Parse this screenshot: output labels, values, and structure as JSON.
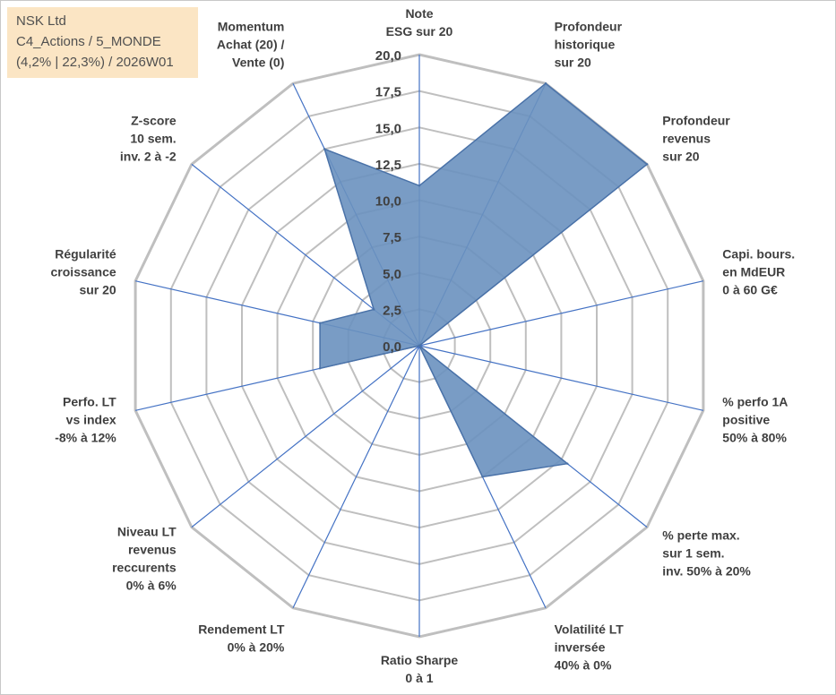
{
  "info": {
    "line1": "NSK Ltd",
    "line2": "C4_Actions / 5_MONDE",
    "line3": "(4,2% | 22,3%) / 2026W01"
  },
  "chart_data": {
    "type": "radar",
    "rmax": 20,
    "ticks": [
      "0,0",
      "2,5",
      "5,0",
      "7,5",
      "10,0",
      "12,5",
      "15,0",
      "17,5",
      "20,0"
    ],
    "axes": [
      [
        "Note",
        "ESG sur 20"
      ],
      [
        "Profondeur",
        "historique",
        "sur 20"
      ],
      [
        "Profondeur",
        "revenus",
        "sur 20"
      ],
      [
        "Capi. bours.",
        "en MdEUR",
        "0 à 60 G€"
      ],
      [
        "% perfo 1A",
        "positive",
        "50% à 80%"
      ],
      [
        "% perte max.",
        "sur 1 sem.",
        "inv. 50% à 20%"
      ],
      [
        "Volatilité LT",
        "inversée",
        "40% à 0%"
      ],
      [
        "Ratio Sharpe",
        "0 à 1"
      ],
      [
        "Rendement LT",
        "0% à 20%"
      ],
      [
        "Niveau LT",
        "revenus",
        "reccurents",
        "0% à 6%"
      ],
      [
        "Perfo. LT",
        "vs index",
        "-8% à 12%"
      ],
      [
        "Régularité",
        "croissance",
        "sur 20"
      ],
      [
        "Z-score",
        "10 sem.",
        "inv. 2 à -2"
      ],
      [
        "Momentum",
        "Achat (20) /",
        "Vente (0)"
      ]
    ],
    "values": [
      11,
      20,
      20,
      0,
      0,
      13,
      10,
      0,
      0,
      0,
      7,
      7,
      4,
      15
    ],
    "colors": {
      "fill": "#6a91bf",
      "stroke": "#4a72a8",
      "grid": "#bfbfbf",
      "spoke": "#4472c4",
      "text": "#404040"
    }
  }
}
